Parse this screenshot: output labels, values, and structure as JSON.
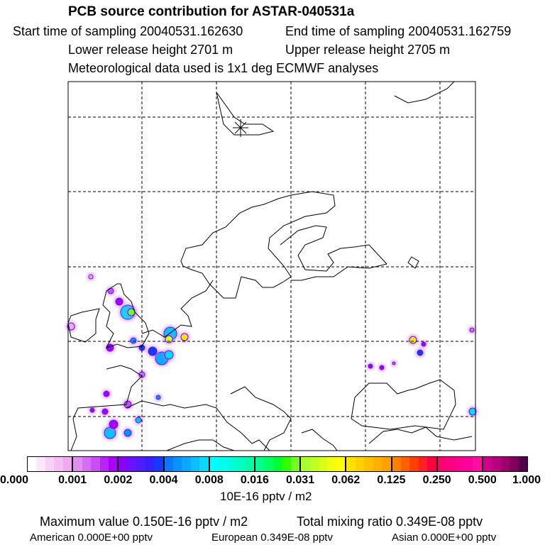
{
  "header": {
    "title": "PCB source contribution for ASTAR-040531a",
    "start": "Start time of sampling 20040531.162630",
    "end": "End time of sampling 20040531.162759",
    "lower": "Lower release height 2701 m",
    "upper": "Upper release height 2705 m",
    "met": "Meteorological data used is 1x1 deg ECMWF analyses"
  },
  "chart_data": {
    "type": "heatmap",
    "title": "PCB source contribution for ASTAR-040531a",
    "colorbar": {
      "ticks": [
        "0.000",
        "0.001",
        "0.002",
        "0.004",
        "0.008",
        "0.016",
        "0.031",
        "0.062",
        "0.125",
        "0.250",
        "0.500",
        "1.000"
      ],
      "unit": "10E-16 pptv / m2",
      "section_colors": [
        [
          "#ffffff",
          "#fbe6fb",
          "#f7d2f7",
          "#f3bef3",
          "#efaaef"
        ],
        [
          "#e28ef0",
          "#d66ef2",
          "#c94ef4",
          "#bb22f7",
          "#a900f9"
        ],
        [
          "#8a00fb",
          "#6a12fb",
          "#4e1bfd",
          "#3520fe",
          "#1838ff"
        ],
        [
          "#0a78ff",
          "#0a90ff",
          "#0aa8ff",
          "#0ac0ff",
          "#0ad8ff"
        ],
        [
          "#00ffff",
          "#00fff0",
          "#00ffd8",
          "#00ffc0",
          "#00ffa8"
        ],
        [
          "#00ff90",
          "#00ff60",
          "#00ff30",
          "#30ff00",
          "#70ff20"
        ],
        [
          "#a8ff30",
          "#c0ff20",
          "#d8ff18",
          "#f0ff10",
          "#ffff00"
        ],
        [
          "#ffe000",
          "#ffd000",
          "#ffc000",
          "#ffb000",
          "#ffa000"
        ],
        [
          "#ff8000",
          "#ff6000",
          "#ff4000",
          "#ff2020",
          "#ff0040"
        ],
        [
          "#ff0070",
          "#ff0080",
          "#ff0090",
          "#ff00a0",
          "#ff10a0"
        ],
        [
          "#d0008e",
          "#b8007e",
          "#a0006e",
          "#80005e",
          "#50004a"
        ]
      ]
    },
    "footer": {
      "max": "Maximum value  0.150E-16 pptv / m2",
      "total": "Total mixing ratio  0.349E-08 pptv",
      "american": "American  0.000E+00 pptv",
      "european": "European  0.349E-08 pptv",
      "asian": "Asian  0.000E+00 pptv"
    }
  }
}
